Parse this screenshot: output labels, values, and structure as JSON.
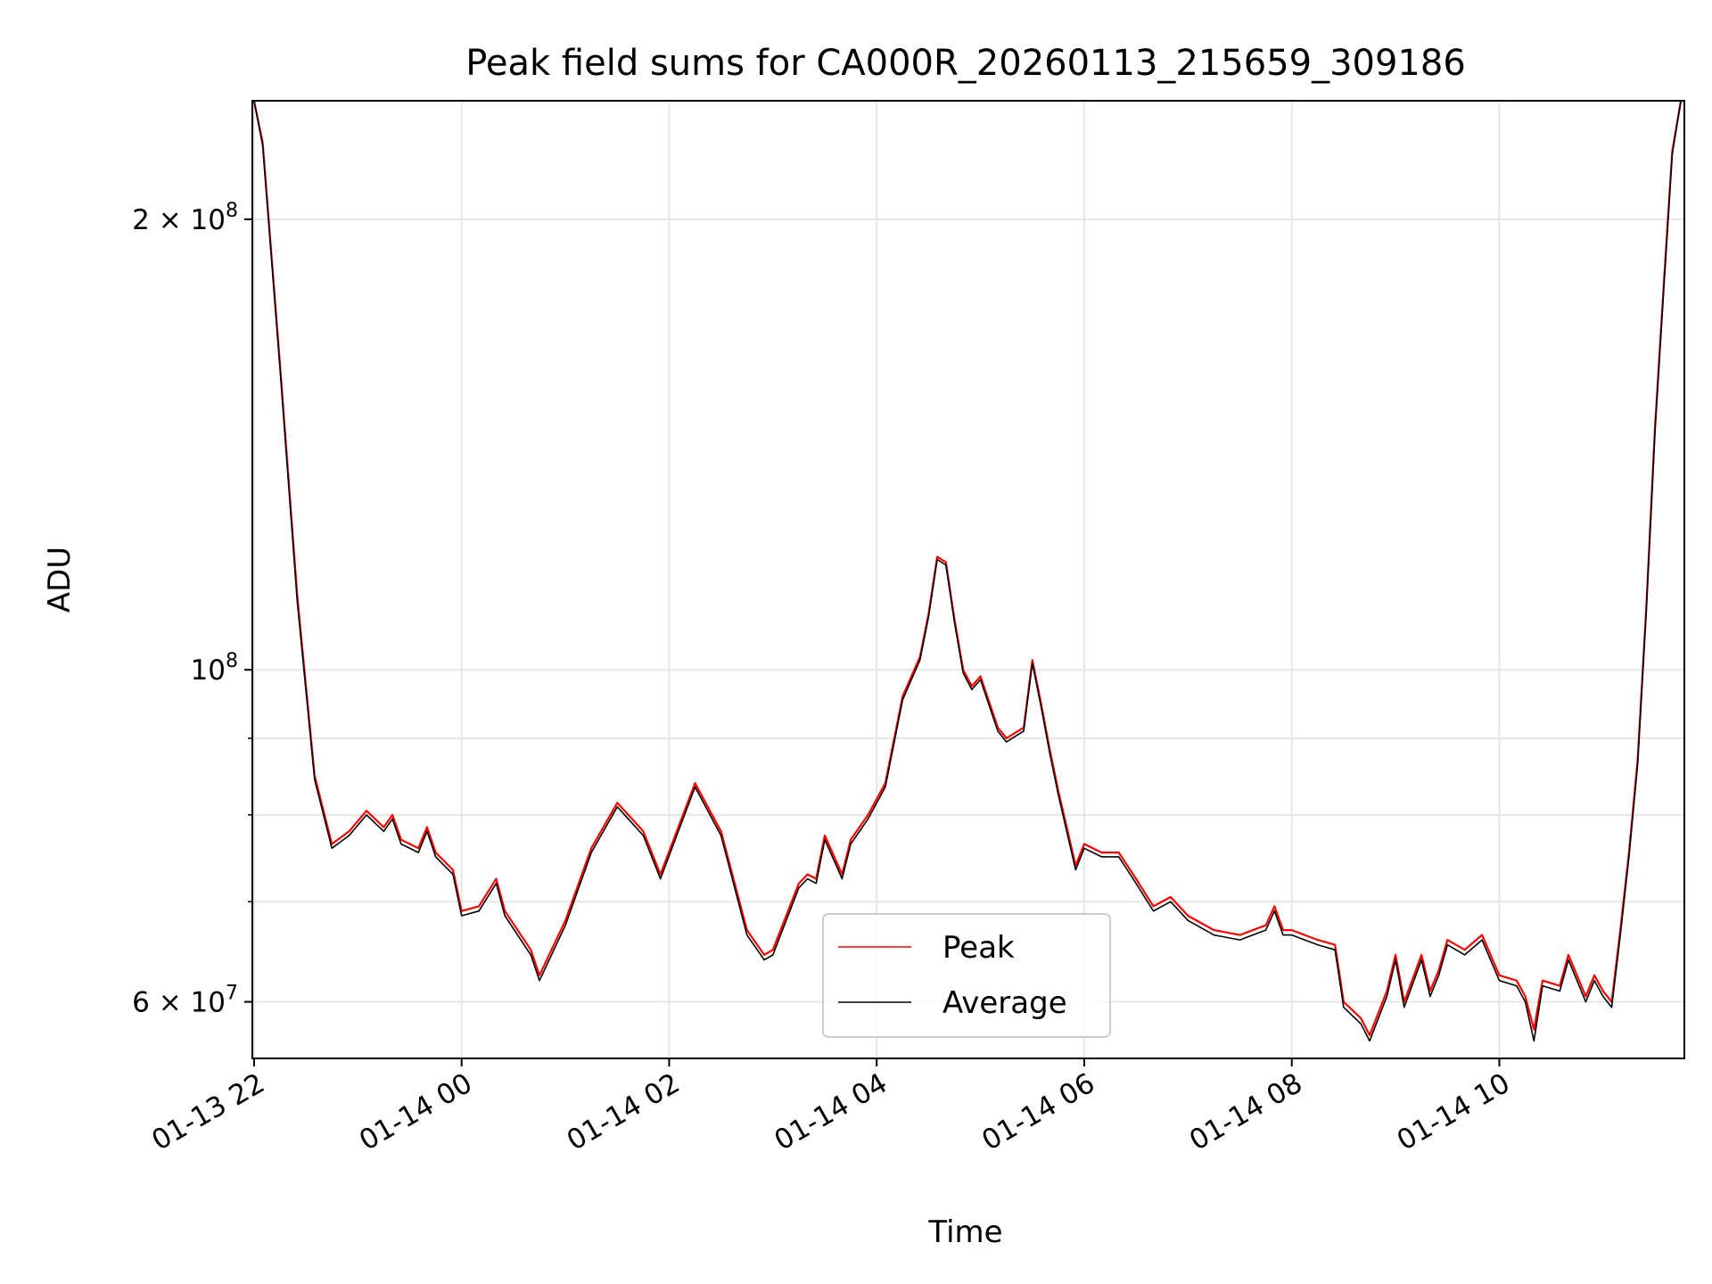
{
  "chart_data": {
    "type": "line",
    "title": "Peak field sums for CA000R_20260113_215659_309186",
    "xlabel": "Time",
    "ylabel": "ADU",
    "yscale": "log",
    "xlim": [
      "2026-01-13 21:59",
      "2026-01-14 11:47"
    ],
    "ylim": [
      55000000,
      240000000
    ],
    "grid": true,
    "legend_position": "lower center",
    "x_tick_labels": [
      "01-13 22",
      "01-14 00",
      "01-14 02",
      "01-14 04",
      "01-14 06",
      "01-14 08",
      "01-14 10"
    ],
    "x_ticks": [
      "2026-01-13 22:00",
      "2026-01-14 00:00",
      "2026-01-14 02:00",
      "2026-01-14 04:00",
      "2026-01-14 06:00",
      "2026-01-14 08:00",
      "2026-01-14 10:00"
    ],
    "y_tick_labels": [
      {
        "value": 60000000,
        "mantissa": "6",
        "exp": "7"
      },
      {
        "value": 100000000,
        "mantissa": "",
        "exp": "8"
      },
      {
        "value": 200000000,
        "mantissa": "2",
        "exp": "8"
      }
    ],
    "y_minor_ticks": [
      70000000,
      80000000,
      90000000
    ],
    "x": [
      "2026-01-13 22:00",
      "2026-01-13 22:05",
      "2026-01-13 22:15",
      "2026-01-13 22:25",
      "2026-01-13 22:35",
      "2026-01-13 22:45",
      "2026-01-13 22:55",
      "2026-01-13 23:05",
      "2026-01-13 23:15",
      "2026-01-13 23:20",
      "2026-01-13 23:25",
      "2026-01-13 23:35",
      "2026-01-13 23:40",
      "2026-01-13 23:45",
      "2026-01-13 23:55",
      "2026-01-14 00:00",
      "2026-01-14 00:10",
      "2026-01-14 00:20",
      "2026-01-14 00:25",
      "2026-01-14 00:40",
      "2026-01-14 00:45",
      "2026-01-14 01:00",
      "2026-01-14 01:15",
      "2026-01-14 01:30",
      "2026-01-14 01:45",
      "2026-01-14 01:55",
      "2026-01-14 02:15",
      "2026-01-14 02:30",
      "2026-01-14 02:45",
      "2026-01-14 02:55",
      "2026-01-14 03:00",
      "2026-01-14 03:15",
      "2026-01-14 03:20",
      "2026-01-14 03:25",
      "2026-01-14 03:30",
      "2026-01-14 03:40",
      "2026-01-14 03:45",
      "2026-01-14 03:55",
      "2026-01-14 04:05",
      "2026-01-14 04:15",
      "2026-01-14 04:25",
      "2026-01-14 04:30",
      "2026-01-14 04:35",
      "2026-01-14 04:40",
      "2026-01-14 04:45",
      "2026-01-14 04:50",
      "2026-01-14 04:55",
      "2026-01-14 05:00",
      "2026-01-14 05:10",
      "2026-01-14 05:15",
      "2026-01-14 05:25",
      "2026-01-14 05:30",
      "2026-01-14 05:35",
      "2026-01-14 05:40",
      "2026-01-14 05:45",
      "2026-01-14 05:55",
      "2026-01-14 06:00",
      "2026-01-14 06:10",
      "2026-01-14 06:20",
      "2026-01-14 06:30",
      "2026-01-14 06:40",
      "2026-01-14 06:50",
      "2026-01-14 07:00",
      "2026-01-14 07:15",
      "2026-01-14 07:30",
      "2026-01-14 07:45",
      "2026-01-14 07:50",
      "2026-01-14 07:55",
      "2026-01-14 08:00",
      "2026-01-14 08:15",
      "2026-01-14 08:25",
      "2026-01-14 08:30",
      "2026-01-14 08:40",
      "2026-01-14 08:45",
      "2026-01-14 08:55",
      "2026-01-14 09:00",
      "2026-01-14 09:05",
      "2026-01-14 09:15",
      "2026-01-14 09:20",
      "2026-01-14 09:25",
      "2026-01-14 09:30",
      "2026-01-14 09:40",
      "2026-01-14 09:50",
      "2026-01-14 10:00",
      "2026-01-14 10:10",
      "2026-01-14 10:15",
      "2026-01-14 10:20",
      "2026-01-14 10:25",
      "2026-01-14 10:35",
      "2026-01-14 10:40",
      "2026-01-14 10:50",
      "2026-01-14 10:55",
      "2026-01-14 11:00",
      "2026-01-14 11:05",
      "2026-01-14 11:10",
      "2026-01-14 11:15",
      "2026-01-14 11:20",
      "2026-01-14 11:25",
      "2026-01-14 11:30",
      "2026-01-14 11:35",
      "2026-01-14 11:40",
      "2026-01-14 11:45"
    ],
    "series": [
      {
        "name": "Peak",
        "color": "#ff0000",
        "values": [
          240000000,
          225000000,
          160000000,
          112000000,
          85000000,
          76500000,
          78000000,
          80500000,
          78500000,
          80000000,
          77000000,
          76000000,
          78500000,
          75500000,
          73500000,
          69000000,
          69500000,
          72500000,
          69000000,
          65000000,
          62500000,
          68000000,
          76000000,
          81500000,
          78000000,
          73000000,
          84000000,
          78000000,
          67000000,
          64500000,
          65000000,
          72000000,
          73000000,
          72500000,
          77500000,
          73000000,
          77000000,
          80000000,
          84000000,
          96000000,
          102000000,
          109000000,
          119000000,
          118000000,
          108000000,
          100000000,
          97500000,
          99000000,
          91500000,
          90000000,
          91500000,
          101500000,
          95000000,
          88500000,
          83000000,
          74000000,
          76500000,
          75500000,
          75500000,
          72500000,
          69500000,
          70500000,
          68500000,
          67000000,
          66500000,
          67500000,
          69500000,
          67000000,
          67000000,
          66000000,
          65500000,
          60000000,
          58500000,
          57000000,
          61000000,
          64500000,
          60000000,
          64500000,
          61000000,
          63000000,
          66000000,
          65000000,
          66500000,
          62500000,
          62000000,
          60500000,
          57500000,
          62000000,
          61500000,
          64500000,
          60500000,
          62500000,
          61000000,
          60000000,
          67000000,
          75500000,
          87000000,
          110000000,
          145000000,
          180000000,
          222000000,
          240000000
        ]
      },
      {
        "name": "Average",
        "color": "#000000",
        "values": [
          240000000,
          224000000,
          159000000,
          111000000,
          84500000,
          76000000,
          77500000,
          80000000,
          78000000,
          79500000,
          76500000,
          75500000,
          78000000,
          75000000,
          73000000,
          68500000,
          69000000,
          72000000,
          68500000,
          64500000,
          62000000,
          67500000,
          75500000,
          81000000,
          77500000,
          72500000,
          83500000,
          77500000,
          66500000,
          64000000,
          64500000,
          71500000,
          72500000,
          72000000,
          77000000,
          72500000,
          76500000,
          79500000,
          83500000,
          95500000,
          101500000,
          108500000,
          118500000,
          117500000,
          107500000,
          99500000,
          97000000,
          98500000,
          91000000,
          89500000,
          91000000,
          101000000,
          94500000,
          88000000,
          82500000,
          73500000,
          76000000,
          75000000,
          75000000,
          72000000,
          69000000,
          70000000,
          68000000,
          66500000,
          66000000,
          67000000,
          69000000,
          66500000,
          66500000,
          65500000,
          65000000,
          59500000,
          58000000,
          56500000,
          60500000,
          64000000,
          59500000,
          64000000,
          60500000,
          62500000,
          65500000,
          64500000,
          66000000,
          62000000,
          61500000,
          60000000,
          56500000,
          61500000,
          61000000,
          64000000,
          60000000,
          62000000,
          60500000,
          59500000,
          66500000,
          75000000,
          86500000,
          109500000,
          144000000,
          179000000,
          221000000,
          240000000
        ]
      }
    ]
  }
}
